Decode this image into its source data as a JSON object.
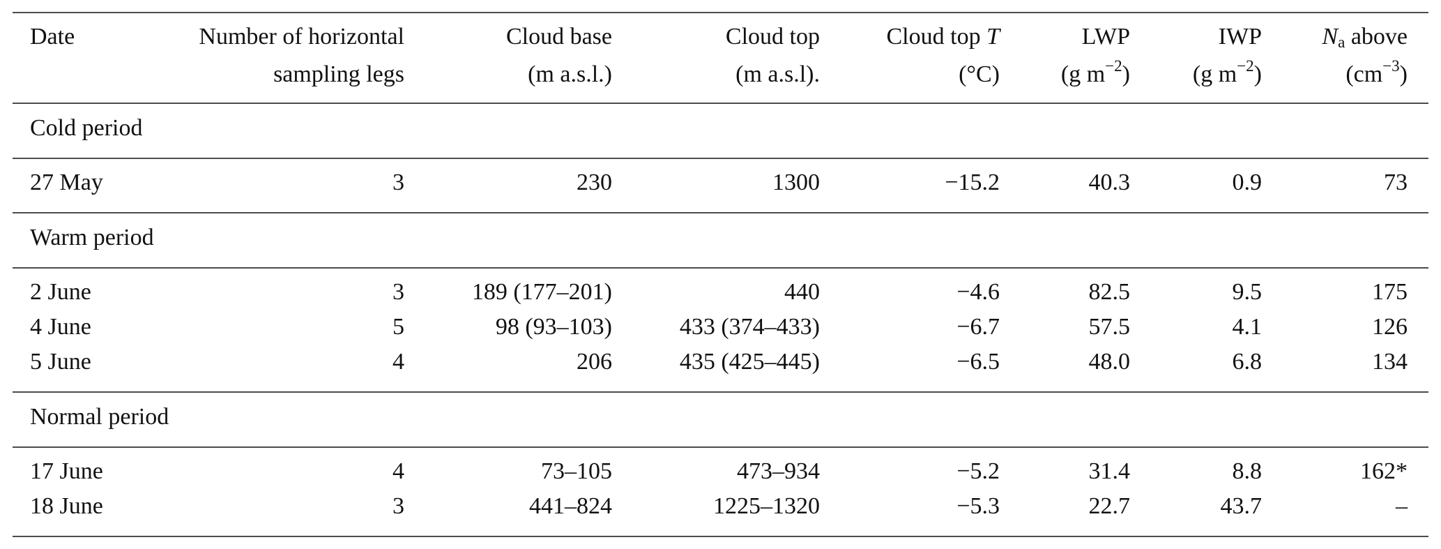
{
  "table": {
    "header": [
      {
        "lines": [
          [
            "Date"
          ]
        ]
      },
      {
        "lines": [
          [
            "Number of horizontal"
          ],
          [
            "sampling legs"
          ]
        ]
      },
      {
        "lines": [
          [
            "Cloud base"
          ],
          [
            "(m a.s.l.)"
          ]
        ]
      },
      {
        "lines": [
          [
            "Cloud top"
          ],
          [
            "(m a.s.l)."
          ]
        ]
      },
      {
        "lines": [
          [
            "Cloud top ",
            {
              "text": "T",
              "style": "italic"
            }
          ],
          [
            "(°C)"
          ]
        ]
      },
      {
        "lines": [
          [
            "LWP"
          ],
          [
            "(g m",
            {
              "text": "−2",
              "style": "sup"
            },
            ")"
          ]
        ]
      },
      {
        "lines": [
          [
            "IWP"
          ],
          [
            "(g m",
            {
              "text": "−2",
              "style": "sup"
            },
            ")"
          ]
        ]
      },
      {
        "lines": [
          [
            {
              "text": "N",
              "style": "italic"
            },
            {
              "text": "a",
              "style": "sub"
            },
            " above"
          ],
          [
            "(cm",
            {
              "text": "−3",
              "style": "sup"
            },
            ")"
          ]
        ]
      }
    ],
    "sections": [
      {
        "title": "Cold period",
        "rows": [
          [
            "27 May",
            "3",
            "230",
            "1300",
            "−15.2",
            "40.3",
            "0.9",
            "73"
          ]
        ]
      },
      {
        "title": "Warm period",
        "rows": [
          [
            "2 June",
            "3",
            "189 (177–201)",
            "440",
            "−4.6",
            "82.5",
            "9.5",
            "175"
          ],
          [
            "4 June",
            "5",
            "98 (93–103)",
            "433 (374–433)",
            "−6.7",
            "57.5",
            "4.1",
            "126"
          ],
          [
            "5 June",
            "4",
            "206",
            "435 (425–445)",
            "−6.5",
            "48.0",
            "6.8",
            "134"
          ]
        ]
      },
      {
        "title": "Normal period",
        "rows": [
          [
            "17 June",
            "4",
            "73–105",
            "473–934",
            "−5.2",
            "31.4",
            "8.8",
            "162*"
          ],
          [
            "18 June",
            "3",
            "441–824",
            "1225–1320",
            "−5.3",
            "22.7",
            "43.7",
            "–"
          ]
        ]
      }
    ]
  }
}
